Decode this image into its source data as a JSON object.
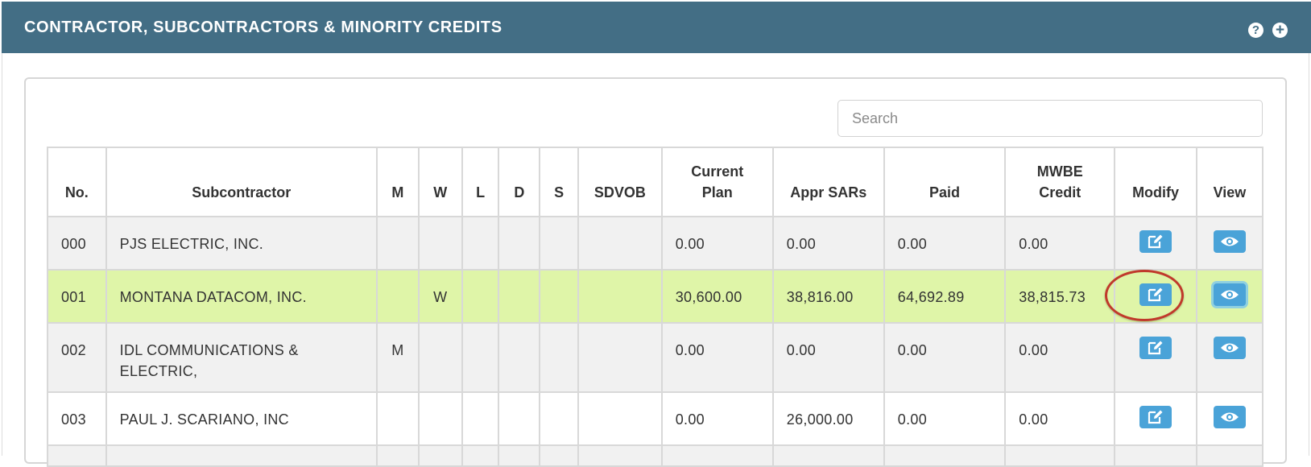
{
  "panel": {
    "title": "CONTRACTOR, SUBCONTRACTORS & MINORITY CREDITS",
    "help_icon": "?",
    "add_icon": "+"
  },
  "search": {
    "placeholder": "Search",
    "value": ""
  },
  "table": {
    "headers": {
      "no": "No.",
      "subcontractor": "Subcontractor",
      "m": "M",
      "w": "W",
      "l": "L",
      "d": "D",
      "s": "S",
      "sdvob": "SDVOB",
      "current_plan": "Current Plan",
      "appr_sars": "Appr SARs",
      "paid": "Paid",
      "mwbe_credit": "MWBE Credit",
      "modify": "Modify",
      "view": "View"
    },
    "rows": [
      {
        "no": "000",
        "subcontractor": "PJS ELECTRIC, INC.",
        "m": "",
        "w": "",
        "l": "",
        "d": "",
        "s": "",
        "sdvob": "",
        "current_plan": "0.00",
        "appr_sars": "0.00",
        "paid": "0.00",
        "mwbe_credit": "0.00"
      },
      {
        "no": "001",
        "subcontractor": "MONTANA DATACOM, INC.",
        "m": "",
        "w": "W",
        "l": "",
        "d": "",
        "s": "",
        "sdvob": "",
        "current_plan": "30,600.00",
        "appr_sars": "38,816.00",
        "paid": "64,692.89",
        "mwbe_credit": "38,815.73"
      },
      {
        "no": "002",
        "subcontractor": "IDL COMMUNICATIONS & ELECTRIC,",
        "m": "M",
        "w": "",
        "l": "",
        "d": "",
        "s": "",
        "sdvob": "",
        "current_plan": "0.00",
        "appr_sars": "0.00",
        "paid": "0.00",
        "mwbe_credit": "0.00"
      },
      {
        "no": "003",
        "subcontractor": "PAUL J. SCARIANO, INC",
        "m": "",
        "w": "",
        "l": "",
        "d": "",
        "s": "",
        "sdvob": "",
        "current_plan": "0.00",
        "appr_sars": "26,000.00",
        "paid": "0.00",
        "mwbe_credit": "0.00"
      }
    ]
  },
  "icons": {
    "modify": "edit-icon",
    "view": "eye-icon",
    "help": "question-circle-icon",
    "add": "plus-circle-icon"
  },
  "colors": {
    "header_bg": "#436e85",
    "button_bg": "#4aa3d8",
    "highlight_row": "#dff5a8",
    "annotation": "#c0392b"
  }
}
